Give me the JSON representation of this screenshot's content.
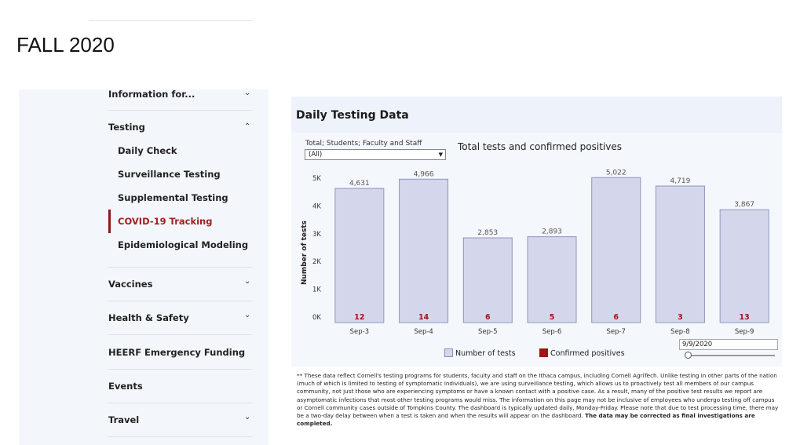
{
  "slide_title": "FALL 2020",
  "sidebar": {
    "items": [
      {
        "label": "Information for..."
      },
      {
        "label": "Testing"
      },
      {
        "label": "Vaccines"
      },
      {
        "label": "Health & Safety"
      },
      {
        "label": "HEERF Emergency Funding"
      },
      {
        "label": "Events"
      },
      {
        "label": "Travel"
      }
    ],
    "testing_sub": [
      {
        "label": "Daily Check"
      },
      {
        "label": "Surveillance Testing"
      },
      {
        "label": "Supplemental Testing"
      },
      {
        "label": "COVID-19 Tracking"
      },
      {
        "label": "Epidemiological Modeling"
      }
    ],
    "accent_color": "#8b1a1a"
  },
  "panel": {
    "title": "Daily Testing Data",
    "filter_label": "Total; Students; Faculty and Staff",
    "filter_value": "(All)",
    "date_value": "9/9/2020",
    "legend": [
      {
        "label": "Number of tests",
        "color": "#d4d7ec"
      },
      {
        "label": "Confirmed positives",
        "color": "#9b1515"
      }
    ],
    "footnote_prefix": "** These data reflect Cornell's testing programs for students, faculty and staff on the Ithaca campus, including Cornell AgriTech. Unlike testing in other parts of the nation (much of which is limited to testing of symptomatic individuals), we are using surveillance testing, which allows us to proactively test all members of our campus community, not just those who are experiencing symptoms or have a known contact with a positive case. As a result, many of the positive test results we report are asymptomatic infections that most other testing programs would miss. The information on this page may not be inclusive of employees who undergo testing off campus or Cornell community cases outside of Tompkins County. The dashboard is typically updated daily, Monday-Friday. Please note that due to test processing time, there may be a two-day delay between when a test is taken and when the results will appear on the dashboard.",
    "footnote_bold": "The data may be corrected as final investigations are completed."
  },
  "chart_data": {
    "type": "bar",
    "title": "Total tests and confirmed positives",
    "ylabel": "Number of tests",
    "xlabel": "",
    "categories": [
      "Sep-3",
      "Sep-4",
      "Sep-5",
      "Sep-6",
      "Sep-7",
      "Sep-8",
      "Sep-9"
    ],
    "series": [
      {
        "name": "Number of tests",
        "values": [
          4631,
          4966,
          2853,
          2893,
          5022,
          4719,
          3867
        ]
      },
      {
        "name": "Confirmed positives",
        "values": [
          12,
          14,
          6,
          5,
          6,
          3,
          13
        ]
      }
    ],
    "bar_labels": [
      "4,631",
      "4,966",
      "2,853",
      "2,893",
      "5,022",
      "4,719",
      "3,867"
    ],
    "ylim": [
      0,
      5200
    ],
    "yticks": [
      0,
      1000,
      2000,
      3000,
      4000,
      5000
    ],
    "ytick_labels": [
      "0K",
      "1K",
      "2K",
      "3K",
      "4K",
      "5K"
    ],
    "grid": false,
    "legend_position": "bottom"
  }
}
